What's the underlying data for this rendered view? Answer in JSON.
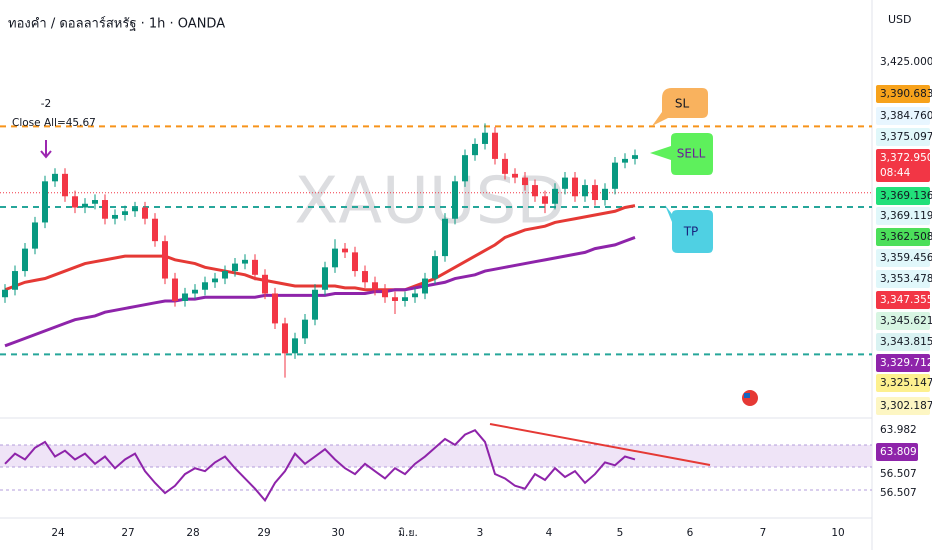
{
  "chart_data": {
    "type": "candlestick",
    "title": "ทองคำ / ดอลลาร์สหรัฐ · 1h · OANDA",
    "watermark": "XAUUSD",
    "currency": "USD",
    "ylim": [
      3313.5,
      3424.5
    ],
    "up_color": "#089981",
    "down_color": "#f23645",
    "candles": [
      [
        3345,
        3348.5,
        3343.5,
        3347
      ],
      [
        3347,
        3353.5,
        3345.5,
        3352
      ],
      [
        3352,
        3359.5,
        3350.5,
        3358
      ],
      [
        3358,
        3366.5,
        3356.5,
        3365
      ],
      [
        3365,
        3377.5,
        3363.5,
        3376
      ],
      [
        3376,
        3379.5,
        3374.5,
        3378
      ],
      [
        3378,
        3379.5,
        3370.5,
        3372
      ],
      [
        3372,
        3373.5,
        3367.5,
        3369
      ],
      [
        3369,
        3371.5,
        3367.5,
        3370
      ],
      [
        3370,
        3372.5,
        3368.5,
        3371
      ],
      [
        3371,
        3372.5,
        3364.5,
        3366
      ],
      [
        3366,
        3368.5,
        3364.5,
        3367
      ],
      [
        3367,
        3369.5,
        3365.5,
        3368
      ],
      [
        3368,
        3370.5,
        3366.5,
        3369
      ],
      [
        3369,
        3370.5,
        3364.5,
        3366
      ],
      [
        3366,
        3367.5,
        3358.5,
        3360
      ],
      [
        3360,
        3361.5,
        3348.5,
        3350
      ],
      [
        3350,
        3351.5,
        3342.5,
        3344
      ],
      [
        3344,
        3347.5,
        3342.5,
        3346
      ],
      [
        3346,
        3348.5,
        3344.5,
        3347
      ],
      [
        3347,
        3350.5,
        3345.5,
        3349
      ],
      [
        3349,
        3351.5,
        3347.5,
        3350
      ],
      [
        3350,
        3353.5,
        3348.5,
        3352
      ],
      [
        3352,
        3355.5,
        3350.5,
        3354
      ],
      [
        3354,
        3356.5,
        3352.5,
        3355
      ],
      [
        3355,
        3356.5,
        3349.5,
        3351
      ],
      [
        3351,
        3352.5,
        3344.5,
        3346
      ],
      [
        3346,
        3347.5,
        3336.5,
        3338
      ],
      [
        3338,
        3339.5,
        3323.5,
        3330
      ],
      [
        3330,
        3335.5,
        3328.5,
        3334
      ],
      [
        3334,
        3340.5,
        3332.5,
        3339
      ],
      [
        3339,
        3348.5,
        3337.5,
        3347
      ],
      [
        3347,
        3354.5,
        3345.5,
        3353
      ],
      [
        3353,
        3360.5,
        3351.5,
        3358
      ],
      [
        3358,
        3359.5,
        3355.5,
        3357
      ],
      [
        3357,
        3358.5,
        3350.5,
        3352
      ],
      [
        3352,
        3353.5,
        3347.5,
        3349
      ],
      [
        3349,
        3350.5,
        3345.5,
        3347
      ],
      [
        3347,
        3348.5,
        3343.5,
        3345
      ],
      [
        3345,
        3346.5,
        3340.5,
        3344
      ],
      [
        3344,
        3346.5,
        3342.5,
        3345
      ],
      [
        3345,
        3347.5,
        3343.5,
        3346
      ],
      [
        3346,
        3351.5,
        3344.5,
        3350
      ],
      [
        3350,
        3357.5,
        3348.5,
        3356
      ],
      [
        3356,
        3367.5,
        3354.5,
        3366
      ],
      [
        3366,
        3377.5,
        3364.5,
        3376
      ],
      [
        3376,
        3384.5,
        3374.5,
        3383
      ],
      [
        3383,
        3387.5,
        3381.5,
        3386
      ],
      [
        3386,
        3391.5,
        3384.5,
        3389
      ],
      [
        3389,
        3390.5,
        3380.5,
        3382
      ],
      [
        3382,
        3383.5,
        3376.5,
        3378
      ],
      [
        3378,
        3379.5,
        3375.5,
        3377
      ],
      [
        3377,
        3378.5,
        3373.5,
        3375
      ],
      [
        3375,
        3376.5,
        3370.5,
        3372
      ],
      [
        3372,
        3373.5,
        3367.5,
        3370
      ],
      [
        3370,
        3375.5,
        3368.5,
        3374
      ],
      [
        3374,
        3378.5,
        3372.5,
        3377
      ],
      [
        3377,
        3378.5,
        3370.5,
        3372
      ],
      [
        3372,
        3376.5,
        3370.5,
        3375
      ],
      [
        3375,
        3376.5,
        3369.5,
        3371
      ],
      [
        3371,
        3375.5,
        3369.5,
        3374
      ],
      [
        3374,
        3382.5,
        3372.5,
        3381
      ],
      [
        3381,
        3383.5,
        3379.5,
        3382
      ],
      [
        3382,
        3384.5,
        3380.5,
        3383
      ]
    ],
    "overlays": [
      {
        "color": "#e53935",
        "values": [
          3347,
          3348,
          3349,
          3349.5,
          3350,
          3351,
          3352,
          3353,
          3354,
          3354.5,
          3355,
          3355.5,
          3356,
          3356,
          3356,
          3356,
          3356,
          3355,
          3354.5,
          3354,
          3353,
          3352.5,
          3352,
          3351.5,
          3351,
          3350,
          3349.5,
          3349,
          3348.5,
          3348,
          3348,
          3348,
          3348,
          3348,
          3347.5,
          3347.5,
          3347,
          3347,
          3347,
          3347,
          3347,
          3348,
          3349,
          3350,
          3351.5,
          3353,
          3354.5,
          3356,
          3357.5,
          3359,
          3361,
          3362,
          3363,
          3363.5,
          3364,
          3365,
          3365.5,
          3366,
          3366.5,
          3367,
          3367.5,
          3368,
          3369,
          3369.5
        ]
      },
      {
        "color": "#8e24aa",
        "values": [
          3332,
          3333,
          3334,
          3335,
          3336,
          3337,
          3338,
          3339,
          3339.5,
          3340,
          3341,
          3341.5,
          3342,
          3342.5,
          3343,
          3343.5,
          3344,
          3344,
          3344.5,
          3344.5,
          3345,
          3345,
          3345,
          3345,
          3345,
          3345,
          3345.5,
          3345.5,
          3345.5,
          3345.5,
          3345.5,
          3345.5,
          3345.5,
          3346,
          3346,
          3346,
          3346,
          3346.5,
          3346.5,
          3347,
          3347,
          3347.5,
          3348,
          3348.5,
          3349,
          3350,
          3350.5,
          3351,
          3352,
          3352.5,
          3353,
          3353.5,
          3354,
          3354.5,
          3355,
          3355.5,
          3356,
          3356.5,
          3357,
          3358,
          3358.5,
          3359,
          3360,
          3361
        ]
      }
    ],
    "hlines": [
      {
        "value": 3390.683,
        "color": "#f7931a"
      },
      {
        "value": 3372.95,
        "color": "#f23645"
      },
      {
        "value": 3369.136,
        "color": "#26a69a"
      },
      {
        "value": 3329.712,
        "color": "#26a69a"
      }
    ],
    "price_labels": [
      {
        "text": "3,425.000",
        "color": "#ffffff",
        "text_color": "#131722"
      },
      {
        "text": "3,390.683",
        "color": "#f7a21b",
        "text_color": "#131722"
      },
      {
        "text": "3,384.760",
        "color": "#e8f6ff",
        "text_color": "#131722"
      },
      {
        "text": "3,375.097",
        "color": "#e0f7fa",
        "text_color": "#131722"
      },
      {
        "text": "3,372.950",
        "color": "#f23645",
        "text_color": "#ffffff"
      },
      {
        "text": "08:44",
        "color": "#f23645",
        "text_color": "#ffffff"
      },
      {
        "text": "3,369.136",
        "color": "#22e07a",
        "text_color": "#131722"
      },
      {
        "text": "3,369.119",
        "color": "#e0f7fa",
        "text_color": "#131722"
      },
      {
        "text": "3,362.508",
        "color": "#4cdf5a",
        "text_color": "#131722"
      },
      {
        "text": "3,359.456",
        "color": "#e0f7fa",
        "text_color": "#131722"
      },
      {
        "text": "3,353.478",
        "color": "#e0f7fa",
        "text_color": "#131722"
      },
      {
        "text": "3,347.355",
        "color": "#f23645",
        "text_color": "#ffffff"
      },
      {
        "text": "3,345.621",
        "color": "#d7f5e2",
        "text_color": "#131722"
      },
      {
        "text": "3,343.815",
        "color": "#d9f2f2",
        "text_color": "#131722"
      },
      {
        "text": "3,329.712",
        "color": "#8e24aa",
        "text_color": "#ffffff"
      },
      {
        "text": "3,325.147",
        "color": "#fdf08f",
        "text_color": "#131722"
      },
      {
        "text": "3,302.187",
        "color": "#fdf6c3",
        "text_color": "#131722"
      }
    ],
    "x_labels": [
      "24",
      "27",
      "28",
      "29",
      "30",
      "มิ.ย.",
      "3",
      "4",
      "5",
      "6",
      "7",
      "10"
    ],
    "annotations": {
      "position": "-2",
      "close_all": "Close All=45.67",
      "sl": "SL",
      "sell": "SELL",
      "tp": "TP"
    },
    "rsi": {
      "color": "#8e24aa",
      "ylim": [
        20,
        85
      ],
      "values": [
        55,
        62,
        58,
        66,
        70,
        60,
        64,
        58,
        62,
        55,
        60,
        52,
        58,
        62,
        50,
        42,
        35,
        40,
        48,
        52,
        50,
        56,
        60,
        52,
        45,
        38,
        30,
        42,
        50,
        62,
        55,
        60,
        65,
        58,
        52,
        48,
        55,
        50,
        45,
        52,
        48,
        55,
        60,
        66,
        72,
        68,
        75,
        78,
        70,
        48,
        45,
        40,
        38,
        48,
        44,
        52,
        46,
        50,
        42,
        48,
        56,
        54,
        60,
        58
      ],
      "labels": [
        {
          "text": "63.982",
          "color": "#ffffff",
          "text_color": "#131722"
        },
        {
          "text": "63.809",
          "color": "#8e24aa",
          "text_color": "#ffffff"
        },
        {
          "text": "56.507",
          "color": "#ffffff",
          "text_color": "#131722"
        },
        {
          "text": "56.507",
          "color": "#ffffff",
          "text_color": "#131722"
        }
      ]
    }
  }
}
